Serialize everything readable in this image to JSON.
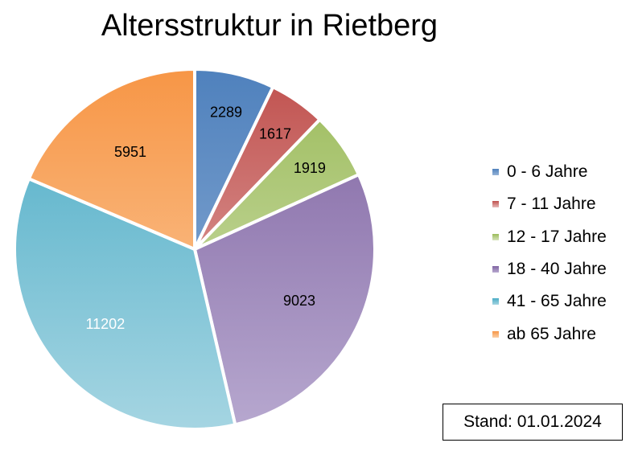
{
  "chart_data": {
    "type": "pie",
    "title": "Altersstruktur in Rietberg",
    "categories": [
      "0 - 6 Jahre",
      "7 - 11 Jahre",
      "12 - 17 Jahre",
      "18 - 40 Jahre",
      "41 - 65 Jahre",
      "ab 65 Jahre"
    ],
    "values": [
      2289,
      1617,
      1919,
      9023,
      11202,
      5951
    ],
    "colors": [
      "#4f81bd",
      "#c0504d",
      "#9bbb59",
      "#8064a2",
      "#4bacc6",
      "#f79646"
    ],
    "gradient_end_colors": [
      "#95b3d7",
      "#e6b9b8",
      "#d7e4bd",
      "#b7a8cf",
      "#a5d5e2",
      "#fbcfa6"
    ],
    "label_colors": [
      "#000000",
      "#000000",
      "#000000",
      "#000000",
      "#ffffff",
      "#000000"
    ],
    "legend_position": "right",
    "start_angle": "top, clockwise"
  },
  "note": {
    "text": "Stand: 01.01.2024"
  }
}
